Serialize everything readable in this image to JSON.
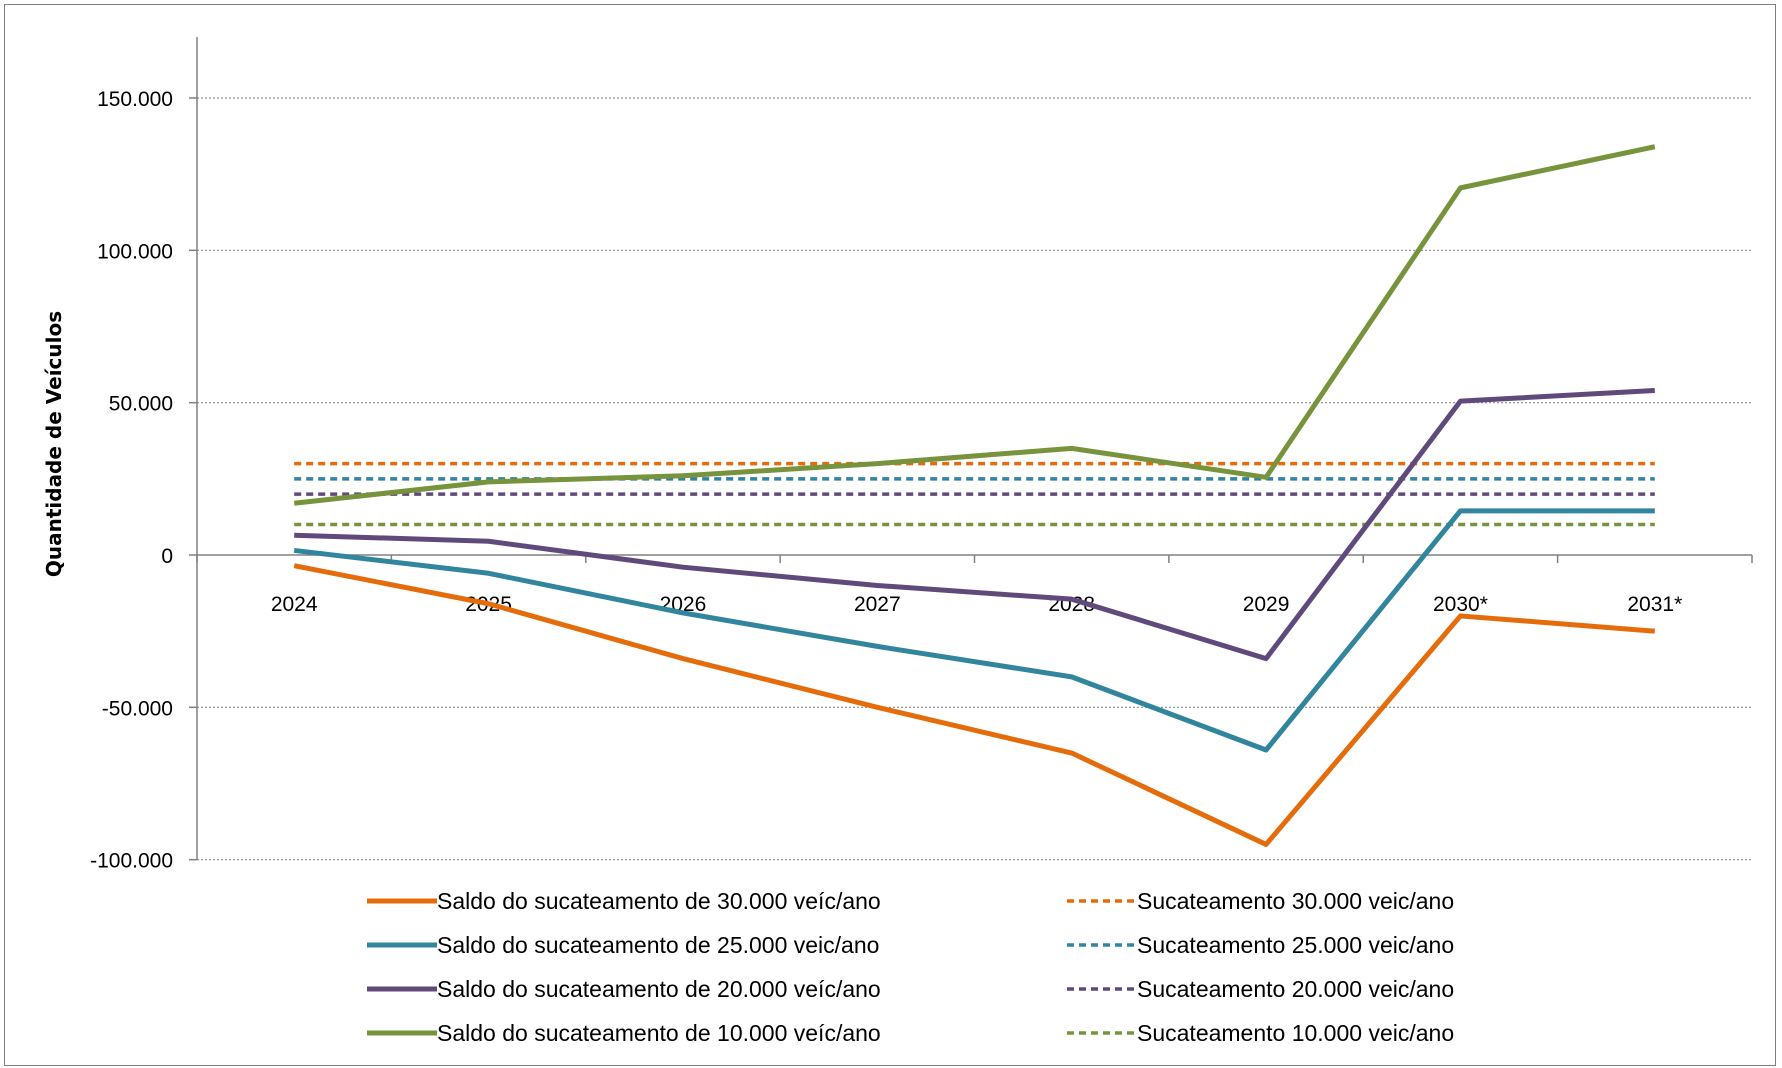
{
  "chart_data": {
    "type": "line",
    "title": "",
    "xlabel": "",
    "ylabel": "Quantidade de Veículos",
    "categories": [
      "2024",
      "2025",
      "2026",
      "2027",
      "2028",
      "2029",
      "2030*",
      "2031*"
    ],
    "ylim": [
      -100000,
      170000
    ],
    "yticks": [
      150000,
      100000,
      50000,
      0,
      -50000,
      -100000
    ],
    "ytick_labels": [
      "150.000",
      "100.000",
      "50.000",
      "0",
      "-50.000",
      "-100.000"
    ],
    "grid": "horizontal dotted",
    "legend_position": "bottom",
    "series": [
      {
        "name": "Saldo do sucateamento de 30.000 veíc/ano",
        "style": "solid",
        "color": "#E46C0A",
        "values": [
          -3500,
          -16000,
          -34000,
          -50000,
          -65000,
          -95000,
          -20000,
          -25000
        ]
      },
      {
        "name": "Saldo do sucateamento de 25.000 veic/ano",
        "style": "solid",
        "color": "#31859C",
        "values": [
          1500,
          -6000,
          -19000,
          -30000,
          -40000,
          -64000,
          14500,
          14500
        ]
      },
      {
        "name": "Saldo do sucateamento de 20.000 veíc/ano",
        "style": "solid",
        "color": "#604A7B",
        "values": [
          6500,
          4500,
          -4000,
          -10000,
          -14500,
          -34000,
          50500,
          54000
        ]
      },
      {
        "name": "Saldo do sucateamento de 10.000 veíc/ano",
        "style": "solid",
        "color": "#77933C",
        "values": [
          17000,
          24000,
          26000,
          30000,
          35000,
          25500,
          120500,
          134000
        ]
      },
      {
        "name": "Sucateamento 30.000 veic/ano",
        "style": "dashed",
        "color": "#E46C0A",
        "values": [
          30000,
          30000,
          30000,
          30000,
          30000,
          30000,
          30000,
          30000
        ]
      },
      {
        "name": "Sucateamento 25.000 veic/ano",
        "style": "dashed",
        "color": "#31859C",
        "values": [
          25000,
          25000,
          25000,
          25000,
          25000,
          25000,
          25000,
          25000
        ]
      },
      {
        "name": "Sucateamento 20.000 veic/ano",
        "style": "dashed",
        "color": "#604A7B",
        "values": [
          20000,
          20000,
          20000,
          20000,
          20000,
          20000,
          20000,
          20000
        ]
      },
      {
        "name": "Sucateamento 10.000 veic/ano",
        "style": "dashed",
        "color": "#77933C",
        "values": [
          10000,
          10000,
          10000,
          10000,
          10000,
          10000,
          10000,
          10000
        ]
      }
    ]
  }
}
